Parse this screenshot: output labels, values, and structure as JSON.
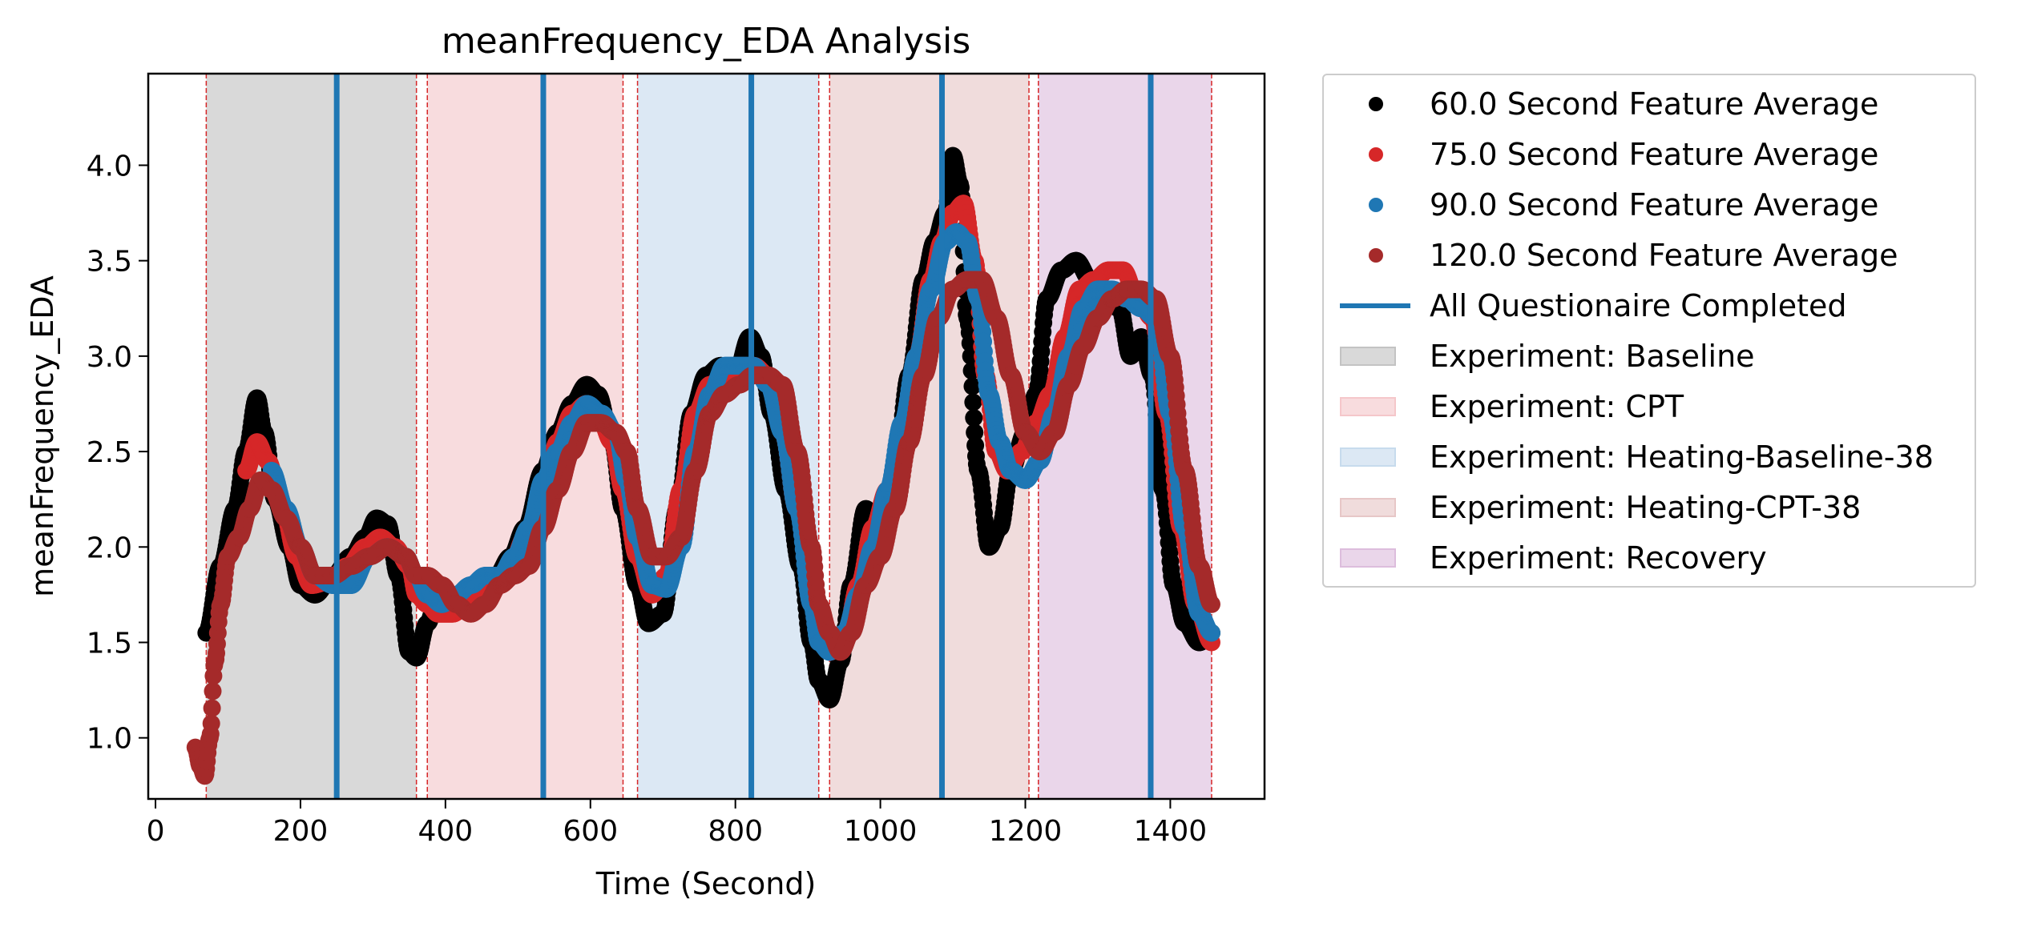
{
  "chart_data": {
    "type": "scatter",
    "title": "meanFrequency_EDA Analysis",
    "xlabel": "Time (Second)",
    "ylabel": "meanFrequency_EDA",
    "xlim": [
      -10,
      1530
    ],
    "ylim": [
      0.68,
      4.48
    ],
    "xticks": [
      0,
      200,
      400,
      600,
      800,
      1000,
      1200,
      1400
    ],
    "yticks": [
      1.0,
      1.5,
      2.0,
      2.5,
      3.0,
      3.5,
      4.0
    ],
    "xtick_labels": [
      "0",
      "200",
      "400",
      "600",
      "800",
      "1000",
      "1200",
      "1400"
    ],
    "ytick_labels": [
      "1.0",
      "1.5",
      "2.0",
      "2.5",
      "3.0",
      "3.5",
      "4.0"
    ],
    "grid": false,
    "legend_position": "outside-right",
    "phases": [
      {
        "name": "Experiment: Baseline",
        "start": 70,
        "end": 360,
        "color": "#c0c0c0"
      },
      {
        "name": "Experiment: CPT",
        "start": 375,
        "end": 645,
        "color": "#f4c4c8"
      },
      {
        "name": "Experiment: Heating-Baseline-38",
        "start": 665,
        "end": 915,
        "color": "#c4d9ec"
      },
      {
        "name": "Experiment: Heating-CPT-38",
        "start": 930,
        "end": 1205,
        "color": "#e6c4c4"
      },
      {
        "name": "Experiment: Recovery",
        "start": 1218,
        "end": 1457,
        "color": "#dcbadc"
      }
    ],
    "questionnaire_line": {
      "name": "All Questionaire Completed",
      "color": "#1f77b4",
      "x": [
        250,
        535,
        822,
        1085,
        1373
      ]
    },
    "boundary_lines_x": [
      70,
      360,
      375,
      645,
      665,
      915,
      930,
      1205,
      1218,
      1457
    ],
    "series": [
      {
        "name": "60.0 Second Feature Average",
        "color": "#000000",
        "x_start": 70,
        "x": [
          70,
          90,
          110,
          125,
          140,
          150,
          165,
          185,
          200,
          220,
          245,
          270,
          290,
          305,
          320,
          335,
          350,
          360,
          375,
          390,
          410,
          430,
          450,
          470,
          490,
          510,
          535,
          555,
          575,
          595,
          610,
          630,
          645,
          665,
          680,
          700,
          720,
          740,
          760,
          780,
          800,
          820,
          835,
          850,
          870,
          890,
          905,
          915,
          930,
          945,
          960,
          980,
          1000,
          1020,
          1040,
          1060,
          1075,
          1090,
          1100,
          1110,
          1120,
          1135,
          1150,
          1165,
          1180,
          1200,
          1215,
          1230,
          1250,
          1270,
          1290,
          1310,
          1330,
          1345,
          1360,
          1375,
          1390,
          1405,
          1420,
          1440,
          1457
        ],
        "y": [
          1.55,
          1.9,
          2.2,
          2.5,
          2.78,
          2.6,
          2.25,
          2.0,
          1.8,
          1.75,
          1.85,
          1.95,
          2.05,
          2.15,
          2.12,
          1.85,
          1.45,
          1.42,
          1.6,
          1.75,
          1.7,
          1.7,
          1.75,
          1.85,
          1.95,
          2.1,
          2.4,
          2.6,
          2.75,
          2.85,
          2.8,
          2.55,
          2.2,
          1.8,
          1.6,
          1.65,
          2.2,
          2.7,
          2.9,
          2.95,
          2.9,
          3.1,
          3.0,
          2.7,
          2.3,
          1.9,
          1.5,
          1.3,
          1.2,
          1.4,
          1.8,
          2.2,
          2.0,
          2.4,
          2.9,
          3.4,
          3.6,
          3.75,
          4.05,
          3.9,
          3.2,
          2.4,
          2.0,
          2.1,
          2.4,
          2.6,
          2.8,
          3.3,
          3.45,
          3.5,
          3.4,
          3.3,
          3.25,
          3.0,
          3.1,
          2.9,
          2.3,
          1.8,
          1.6,
          1.5,
          1.55
        ]
      },
      {
        "name": "75.0 Second Feature Average",
        "color": "#d62728",
        "x_start": 125,
        "x": [
          125,
          140,
          155,
          175,
          195,
          215,
          240,
          265,
          290,
          310,
          330,
          350,
          360,
          375,
          390,
          410,
          430,
          450,
          470,
          490,
          510,
          535,
          555,
          575,
          595,
          610,
          630,
          645,
          665,
          685,
          705,
          725,
          745,
          765,
          785,
          805,
          825,
          845,
          865,
          885,
          905,
          915,
          930,
          950,
          970,
          990,
          1010,
          1030,
          1050,
          1070,
          1085,
          1100,
          1115,
          1130,
          1145,
          1160,
          1175,
          1195,
          1215,
          1235,
          1255,
          1275,
          1295,
          1315,
          1335,
          1355,
          1375,
          1395,
          1415,
          1435,
          1457
        ],
        "y": [
          2.4,
          2.55,
          2.45,
          2.2,
          1.95,
          1.8,
          1.82,
          1.9,
          2.0,
          2.05,
          2.0,
          1.9,
          1.75,
          1.7,
          1.65,
          1.65,
          1.7,
          1.75,
          1.8,
          1.9,
          2.05,
          2.3,
          2.55,
          2.7,
          2.75,
          2.7,
          2.55,
          2.3,
          1.95,
          1.75,
          1.85,
          2.3,
          2.7,
          2.85,
          2.9,
          2.85,
          2.95,
          2.9,
          2.6,
          2.2,
          1.8,
          1.6,
          1.45,
          1.5,
          1.8,
          2.1,
          2.3,
          2.6,
          3.0,
          3.4,
          3.6,
          3.75,
          3.8,
          3.5,
          2.9,
          2.5,
          2.4,
          2.5,
          2.65,
          2.8,
          3.1,
          3.35,
          3.4,
          3.45,
          3.45,
          3.3,
          3.2,
          2.7,
          2.1,
          1.7,
          1.5
        ]
      },
      {
        "name": "90.0 Second Feature Average",
        "color": "#1f77b4",
        "x_start": 160,
        "x": [
          160,
          180,
          200,
          220,
          245,
          270,
          295,
          320,
          345,
          360,
          375,
          395,
          415,
          435,
          455,
          475,
          495,
          515,
          535,
          555,
          575,
          595,
          615,
          635,
          650,
          665,
          685,
          705,
          725,
          745,
          765,
          785,
          805,
          825,
          845,
          865,
          885,
          905,
          915,
          930,
          950,
          970,
          990,
          1010,
          1030,
          1050,
          1070,
          1090,
          1105,
          1120,
          1135,
          1150,
          1165,
          1180,
          1200,
          1220,
          1240,
          1260,
          1280,
          1300,
          1320,
          1340,
          1360,
          1380,
          1400,
          1420,
          1440,
          1457
        ],
        "y": [
          2.4,
          2.2,
          2.0,
          1.85,
          1.8,
          1.8,
          1.95,
          2.0,
          1.95,
          1.85,
          1.75,
          1.7,
          1.75,
          1.8,
          1.85,
          1.85,
          1.95,
          2.1,
          2.35,
          2.5,
          2.65,
          2.75,
          2.7,
          2.6,
          2.35,
          2.05,
          1.8,
          1.78,
          2.0,
          2.5,
          2.8,
          2.95,
          2.95,
          2.95,
          2.85,
          2.6,
          2.2,
          1.7,
          1.5,
          1.45,
          1.55,
          1.75,
          2.0,
          2.3,
          2.65,
          3.0,
          3.35,
          3.6,
          3.65,
          3.6,
          3.3,
          2.8,
          2.55,
          2.4,
          2.35,
          2.45,
          2.7,
          3.0,
          3.25,
          3.35,
          3.35,
          3.3,
          3.25,
          3.2,
          2.7,
          2.1,
          1.65,
          1.55
        ]
      },
      {
        "name": "120.0 Second Feature Average",
        "color": "#a52a2a",
        "x_start": 55,
        "x": [
          55,
          62,
          68,
          75,
          82,
          90,
          100,
          115,
          130,
          145,
          160,
          180,
          200,
          220,
          245,
          270,
          295,
          320,
          345,
          360,
          375,
          395,
          415,
          435,
          455,
          475,
          495,
          515,
          535,
          555,
          575,
          595,
          615,
          635,
          650,
          665,
          685,
          705,
          725,
          745,
          765,
          785,
          805,
          825,
          845,
          865,
          885,
          905,
          915,
          930,
          945,
          960,
          980,
          1000,
          1020,
          1040,
          1060,
          1080,
          1100,
          1120,
          1140,
          1160,
          1180,
          1200,
          1220,
          1240,
          1260,
          1280,
          1300,
          1320,
          1340,
          1360,
          1380,
          1400,
          1420,
          1440,
          1457
        ],
        "y": [
          0.95,
          0.85,
          0.8,
          1.0,
          1.4,
          1.7,
          1.95,
          2.05,
          2.2,
          2.35,
          2.3,
          2.15,
          2.0,
          1.85,
          1.85,
          1.9,
          1.95,
          2.0,
          1.95,
          1.85,
          1.85,
          1.8,
          1.7,
          1.65,
          1.7,
          1.8,
          1.85,
          1.9,
          2.1,
          2.3,
          2.5,
          2.65,
          2.65,
          2.6,
          2.5,
          2.2,
          1.95,
          1.95,
          2.05,
          2.4,
          2.7,
          2.8,
          2.85,
          2.9,
          2.9,
          2.85,
          2.5,
          2.0,
          1.7,
          1.55,
          1.45,
          1.55,
          1.8,
          1.95,
          2.2,
          2.55,
          2.9,
          3.2,
          3.35,
          3.4,
          3.4,
          3.2,
          2.9,
          2.6,
          2.5,
          2.6,
          2.85,
          3.05,
          3.2,
          3.3,
          3.35,
          3.35,
          3.3,
          3.0,
          2.4,
          1.9,
          1.7
        ]
      }
    ]
  },
  "legend": {
    "items": [
      {
        "label": "60.0 Second Feature Average",
        "kind": "dot",
        "color": "#000000"
      },
      {
        "label": "75.0 Second Feature Average",
        "kind": "dot",
        "color": "#d62728"
      },
      {
        "label": "90.0 Second Feature Average",
        "kind": "dot",
        "color": "#1f77b4"
      },
      {
        "label": "120.0 Second Feature Average",
        "kind": "dot",
        "color": "#a52a2a"
      },
      {
        "label": "All Questionaire Completed",
        "kind": "line",
        "color": "#1f77b4"
      },
      {
        "label": "Experiment: Baseline",
        "kind": "patch",
        "color": "#c0c0c0"
      },
      {
        "label": "Experiment: CPT",
        "kind": "patch",
        "color": "#f4c4c8"
      },
      {
        "label": "Experiment: Heating-Baseline-38",
        "kind": "patch",
        "color": "#c4d9ec"
      },
      {
        "label": "Experiment: Heating-CPT-38",
        "kind": "patch",
        "color": "#e6c4c4"
      },
      {
        "label": "Experiment: Recovery",
        "kind": "patch",
        "color": "#dcbadc"
      }
    ]
  }
}
